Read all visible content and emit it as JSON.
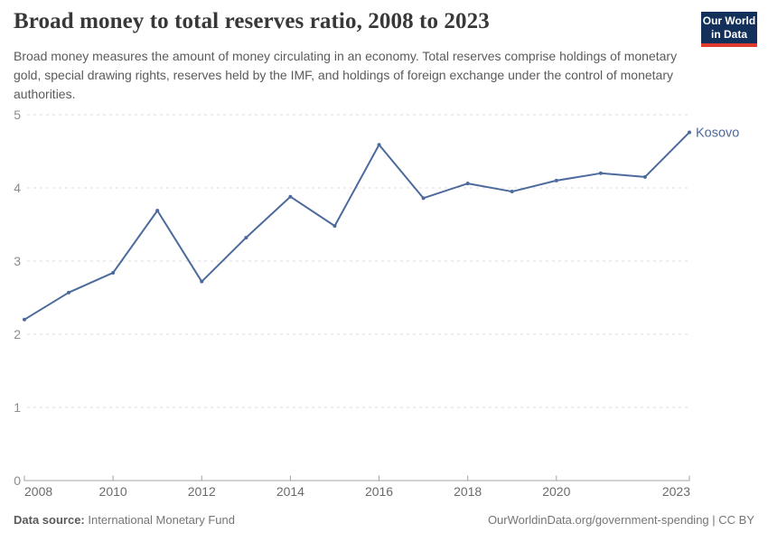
{
  "header": {
    "title": "Broad money to total reserves ratio, 2008 to 2023",
    "subtitle": "Broad money measures the amount of money circulating in an economy. Total reserves comprise holdings of monetary gold, special drawing rights, reserves held by the IMF, and holdings of foreign exchange under the control of monetary authorities.",
    "logo": {
      "line1": "Our World",
      "line2": "in Data",
      "bg_color": "#12305a",
      "accent_color": "#e0392e"
    }
  },
  "chart_data": {
    "type": "line",
    "title": "Broad money to total reserves ratio, 2008 to 2023",
    "x": [
      2008,
      2009,
      2010,
      2011,
      2012,
      2013,
      2014,
      2015,
      2016,
      2017,
      2018,
      2019,
      2020,
      2021,
      2022,
      2023
    ],
    "series": [
      {
        "name": "Kosovo",
        "color": "#4c6a9c",
        "values": [
          2.2,
          2.57,
          2.84,
          3.69,
          2.72,
          3.32,
          3.88,
          3.48,
          4.59,
          3.86,
          4.06,
          3.95,
          4.1,
          4.2,
          4.15,
          4.76
        ]
      }
    ],
    "xlim": [
      2008,
      2023
    ],
    "ylim": [
      0,
      5
    ],
    "x_ticks": [
      2008,
      2010,
      2012,
      2014,
      2016,
      2018,
      2020,
      2023
    ],
    "y_ticks": [
      0,
      1,
      2,
      3,
      4,
      5
    ],
    "grid": "horizontal-dashed",
    "legend_position": "end-of-line",
    "end_label": "Kosovo"
  },
  "footer": {
    "datasource_label": "Data source:",
    "datasource_value": "International Monetary Fund",
    "credit": "OurWorldinData.org/government-spending | CC BY"
  }
}
